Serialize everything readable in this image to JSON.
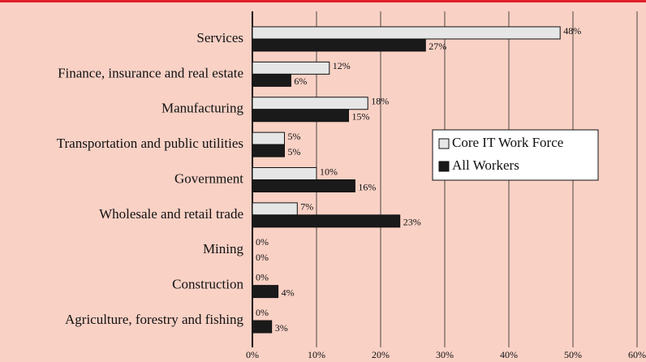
{
  "chart_data": {
    "type": "bar",
    "orientation": "horizontal",
    "categories": [
      "Services",
      "Finance, insurance and real estate",
      "Manufacturing",
      "Transportation and public utilities",
      "Government",
      "Wholesale and retail trade",
      "Mining",
      "Construction",
      "Agriculture, forestry and fishing"
    ],
    "series": [
      {
        "name": "Core IT Work Force",
        "color": "#e6e6e6",
        "values": [
          48,
          12,
          18,
          5,
          10,
          7,
          0,
          0,
          0
        ],
        "value_labels": [
          "48%",
          "12%",
          "18%",
          "5%",
          "10%",
          "7%",
          "0%",
          "0%",
          "0%"
        ]
      },
      {
        "name": "All Workers",
        "color": "#1a1a1a",
        "values": [
          27,
          6,
          15,
          5,
          16,
          23,
          0,
          4,
          3
        ],
        "value_labels": [
          "27%",
          "6%",
          "15%",
          "5%",
          "16%",
          "23%",
          "0%",
          "4%",
          "3%"
        ]
      }
    ],
    "xlim": [
      0,
      60
    ],
    "xticks": [
      {
        "value": 0,
        "label": "0%"
      },
      {
        "value": 10,
        "label": "10%"
      },
      {
        "value": 20,
        "label": "20%"
      },
      {
        "value": 30,
        "label": "30%"
      },
      {
        "value": 40,
        "label": "40%"
      },
      {
        "value": 50,
        "label": "50%"
      },
      {
        "value": 60,
        "label": "60%"
      }
    ],
    "grid": true,
    "legend": "right"
  }
}
